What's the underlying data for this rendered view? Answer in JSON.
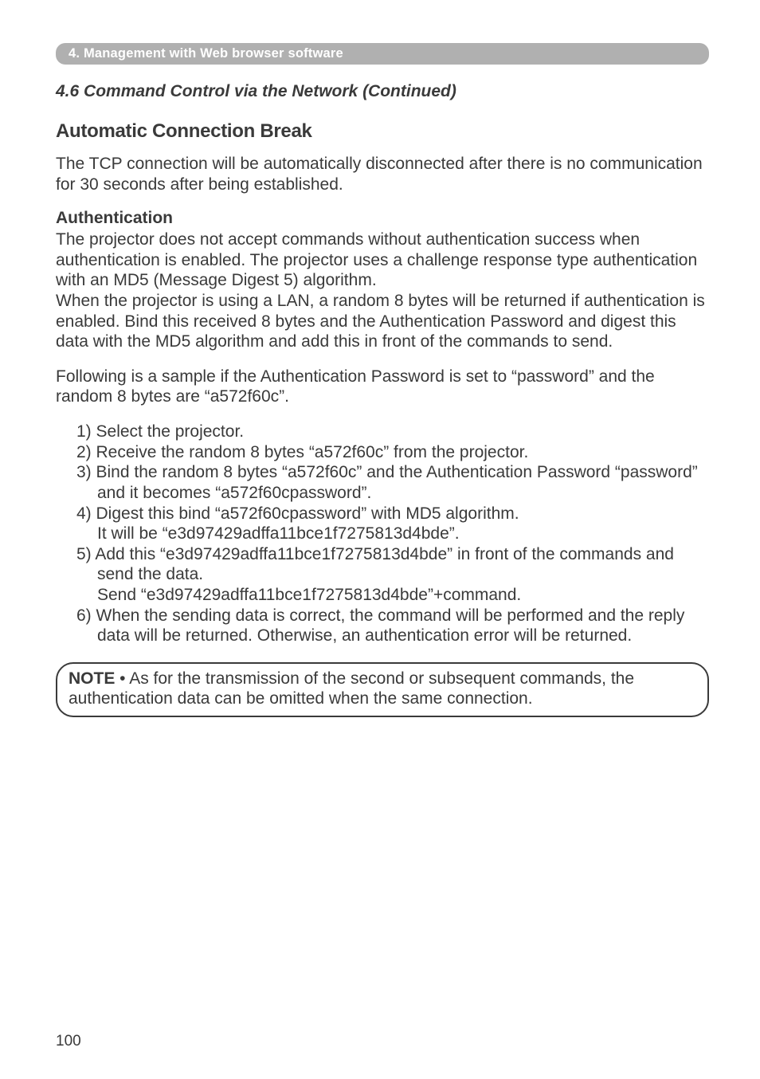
{
  "chapter_bar": "4. Management with Web browser software",
  "section_title": "4.6 Command Control via the Network (Continued)",
  "subsection_title": "Automatic Connection Break",
  "intro_para": "The TCP connection will be automatically disconnected after there is no communication for 30 seconds after being established.",
  "auth_heading": "Authentication",
  "auth_para1": "The projector does not accept commands without authentication success when authentication is enabled. The projector uses a challenge response type authentication with an MD5 (Message Digest 5) algorithm.",
  "auth_para2": "When the projector is using a LAN, a random 8 bytes will be returned if authentication is enabled. Bind this received 8 bytes and the Authentication Password and digest this data with the MD5 algorithm and add this in front of the commands to send.",
  "sample_intro": "Following is a sample if the Authentication Password is set to “password” and the random 8 bytes are “a572f60c”.",
  "steps": {
    "s1": "1) Select the projector.",
    "s2": "2) Receive the random 8 bytes “a572f60c” from the projector.",
    "s3": "3) Bind the random 8 bytes “a572f60c” and the Authentication Password “password” and it becomes “a572f60cpassword”.",
    "s4": "4) Digest this bind “a572f60cpassword” with MD5 algorithm.",
    "s4b": "It will be “e3d97429adffa11bce1f7275813d4bde”.",
    "s5": "5) Add this “e3d97429adffa11bce1f7275813d4bde” in front of the commands and send the data.",
    "s5b": "Send “e3d97429adffa11bce1f7275813d4bde”+command.",
    "s6": "6) When the sending data is correct, the command will be performed and the reply data will be returned. Otherwise, an authentication error will be returned."
  },
  "note_label": "NOTE",
  "note_text": " • As for the transmission of the second or subsequent commands, the authentication data can be omitted when the same connection.",
  "page_number": "100"
}
